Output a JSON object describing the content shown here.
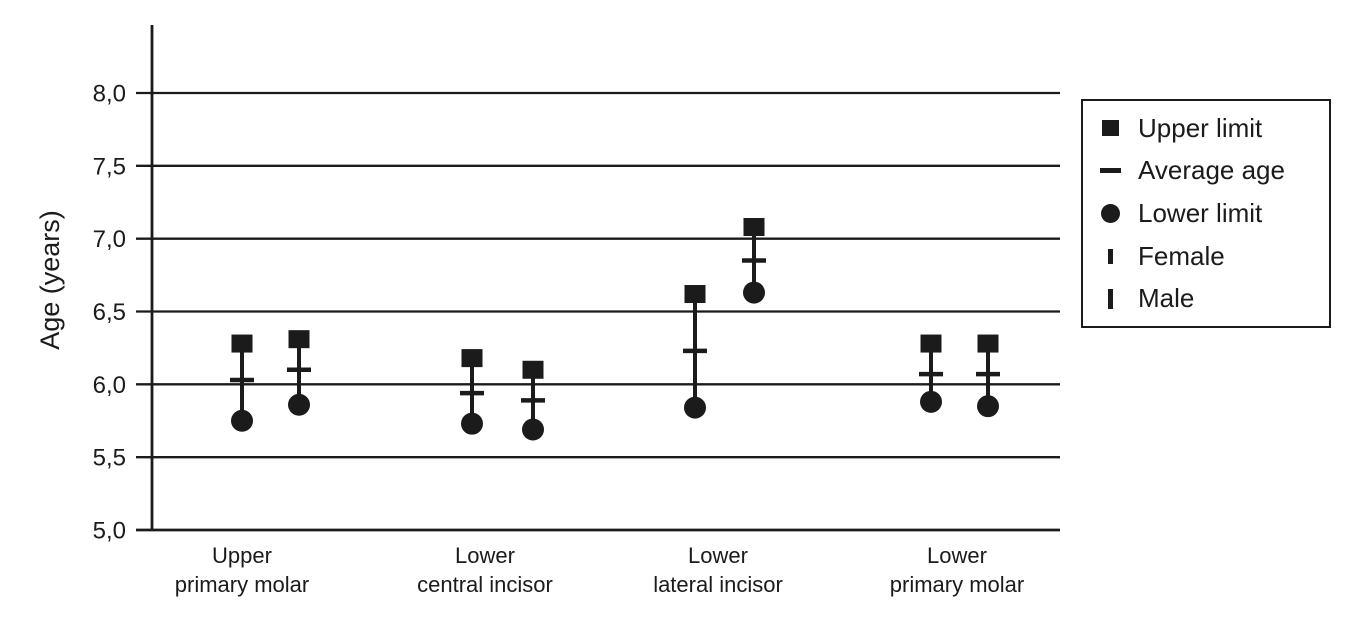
{
  "chart_data": {
    "type": "dot-range",
    "title": "",
    "ylabel": "Age (years)",
    "xlabel": "",
    "ylim": [
      5.0,
      8.0
    ],
    "grid": true,
    "decimal_style": "comma",
    "yticks": [
      {
        "value": 8.0,
        "label": "8,0"
      },
      {
        "value": 7.5,
        "label": "7,5"
      },
      {
        "value": 7.0,
        "label": "7,0"
      },
      {
        "value": 6.5,
        "label": "6,5"
      },
      {
        "value": 6.0,
        "label": "6,0"
      },
      {
        "value": 5.5,
        "label": "5,5"
      },
      {
        "value": 5.0,
        "label": "5,0"
      }
    ],
    "categories": [
      {
        "line1": "Upper",
        "line2": "primary molar"
      },
      {
        "line1": "Lower",
        "line2": "central incisor"
      },
      {
        "line1": "Lower",
        "line2": "lateral incisor"
      },
      {
        "line1": "Lower",
        "line2": "primary molar"
      }
    ],
    "series": [
      {
        "name": "Female",
        "points": [
          {
            "upper": 6.28,
            "average": 6.03,
            "lower": 5.75
          },
          {
            "upper": 6.18,
            "average": 5.94,
            "lower": 5.73
          },
          {
            "upper": 6.62,
            "average": 6.23,
            "lower": 5.84
          },
          {
            "upper": 6.28,
            "average": 6.07,
            "lower": 5.88
          }
        ]
      },
      {
        "name": "Male",
        "points": [
          {
            "upper": 6.31,
            "average": 6.1,
            "lower": 5.86
          },
          {
            "upper": 6.1,
            "average": 5.89,
            "lower": 5.69
          },
          {
            "upper": 7.08,
            "average": 6.85,
            "lower": 6.63
          },
          {
            "upper": 6.28,
            "average": 6.07,
            "lower": 5.85
          }
        ]
      }
    ],
    "legend": [
      {
        "marker": "square",
        "label": "Upper limit"
      },
      {
        "marker": "dash",
        "label": "Average age"
      },
      {
        "marker": "circle",
        "label": "Lower limit"
      },
      {
        "marker": "bar-short",
        "label": "Female"
      },
      {
        "marker": "bar-tall",
        "label": "Male"
      }
    ],
    "legend_position": "right",
    "colors": {
      "marker": "#1b1b1b",
      "axis": "#1b1b1b",
      "text": "#1b1b1b",
      "background": "#ffffff"
    }
  }
}
